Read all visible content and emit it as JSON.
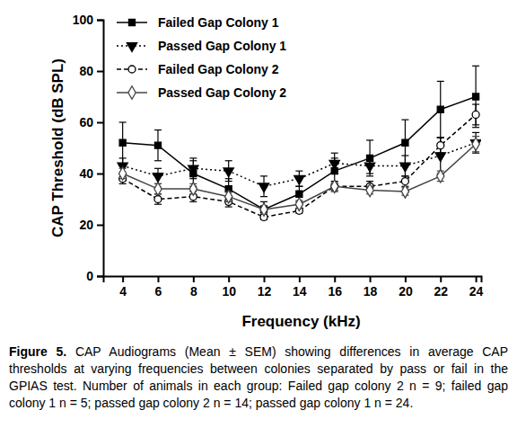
{
  "chart_data": {
    "type": "line",
    "y_label": "CAP Threshold (dB SPL)",
    "x_label": "Frequency (kHz)",
    "caption": {
      "label": "Figure 5.",
      "text": "CAP Audiograms (Mean ± SEM) showing differences in average CAP thresholds at varying frequencies between colonies separated by pass or fail in the GPIAS test. Number of animals in each group: Failed gap colony 2 n = 9; failed gap colony 1 n = 5; passed gap colony 2 n = 14; passed gap colony 1 n = 24."
    },
    "x": [
      4,
      6,
      8,
      10,
      12,
      14,
      16,
      18,
      20,
      22,
      24
    ],
    "xlim": [
      2.9,
      24.3
    ],
    "xticks": [
      4,
      6,
      8,
      10,
      12,
      14,
      16,
      18,
      20,
      22,
      24
    ],
    "ylim": [
      0,
      100
    ],
    "yticks": [
      0,
      20,
      40,
      60,
      80,
      100
    ],
    "legend": "upper left",
    "series": [
      {
        "name": "Failed Gap Colony 1",
        "color": "#000000",
        "marker": "square",
        "line_style": "solid",
        "values": [
          52,
          51,
          40,
          34,
          26,
          32,
          41,
          46,
          52,
          65,
          70
        ],
        "errors": [
          8,
          6,
          5,
          4,
          3,
          3,
          5,
          7,
          9,
          11,
          12
        ]
      },
      {
        "name": "Passed Gap Colony 1",
        "color": "#000000",
        "marker": "triangle-down",
        "line_style": "dotted",
        "values": [
          43,
          39,
          42,
          41,
          35,
          38,
          44,
          43,
          43,
          47,
          52
        ],
        "errors": [
          3,
          3,
          4,
          4,
          4,
          3,
          4,
          3,
          4,
          7,
          4
        ]
      },
      {
        "name": "Failed Gap Colony 2",
        "color": "#000000",
        "marker": "open-circle",
        "line_style": "dashed",
        "values": [
          38,
          30,
          31,
          29,
          23,
          25.5,
          35,
          35,
          37,
          51,
          63
        ],
        "errors": [
          2,
          2,
          2,
          2,
          1,
          1,
          2,
          2,
          2,
          3,
          4
        ]
      },
      {
        "name": "Passed Gap Colony 2",
        "color": "#444444",
        "marker": "open-diamond",
        "line_style": "solid",
        "values": [
          40,
          34,
          34,
          31,
          26,
          28,
          35,
          33.5,
          33,
          39,
          51.5
        ],
        "errors": [
          2,
          2,
          2,
          2,
          1.5,
          1.5,
          1.5,
          1.5,
          1.5,
          2,
          3
        ]
      }
    ]
  }
}
